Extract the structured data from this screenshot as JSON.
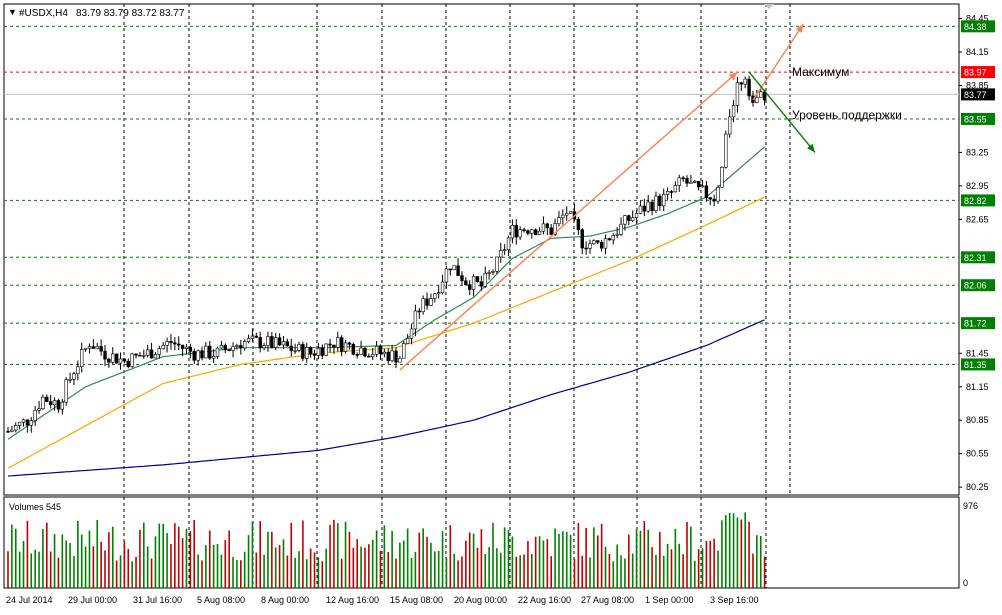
{
  "header": {
    "symbol_label": "#USDX,H4",
    "ohlc_label": "83.79 83.79 83.72 83.77",
    "arrow_glyph": "▼"
  },
  "colors": {
    "background": "#ffffff",
    "axis": "#000000",
    "grid": "#000000",
    "bull": "#008000",
    "bear": "#c00000",
    "wick": "#000000",
    "ma_fast": "#2e8b57",
    "ma_mid": "#ffa500",
    "ma_slow": "#00008b",
    "level_line": "#008000",
    "level_label_bg": "#008000",
    "resistance_line": "#ff0000",
    "resistance_label_bg": "#ff0000",
    "current_label_bg": "#000000",
    "trend_arrow": "#ff7f50",
    "support_arrow": "#008000",
    "volume_up": "#008000",
    "volume_down": "#c00000"
  },
  "price_axis_ticks": [
    "84.45",
    "84.15",
    "83.85",
    "83.25",
    "82.95",
    "82.65",
    "81.45",
    "81.15",
    "80.85",
    "80.55",
    "80.25"
  ],
  "price_levels": [
    {
      "value": 84.38,
      "label": "84.38",
      "kind": "level"
    },
    {
      "value": 83.97,
      "label": "83.97",
      "kind": "resistance"
    },
    {
      "value": 83.77,
      "label": "83.77",
      "kind": "current"
    },
    {
      "value": 83.55,
      "label": "83.55",
      "kind": "level"
    },
    {
      "value": 82.82,
      "label": "82.82",
      "kind": "level"
    },
    {
      "value": 82.31,
      "label": "82.31",
      "kind": "level"
    },
    {
      "value": 82.06,
      "label": "82.06",
      "kind": "level"
    },
    {
      "value": 81.72,
      "label": "81.72",
      "kind": "level"
    },
    {
      "value": 81.35,
      "label": "81.35",
      "kind": "level"
    }
  ],
  "annotations": {
    "maximum": "Максимум",
    "support": "Уровень поддержки"
  },
  "volume_panel": {
    "label": "Volumes 545",
    "max_label": "976",
    "min_label": "0"
  },
  "chart_data": {
    "type": "candlestick",
    "symbol": "#USDX",
    "timeframe": "H4",
    "x_tick_labels": [
      "24 Jul 2014",
      "29 Jul 00:00",
      "31 Jul 16:00",
      "5 Aug 08:00",
      "8 Aug 00:00",
      "12 Aug 16:00",
      "15 Aug 08:00",
      "20 Aug 00:00",
      "22 Aug 16:00",
      "27 Aug 08:00",
      "1 Sep 00:00",
      "3 Sep 16:00"
    ],
    "ylim": [
      80.18,
      84.58
    ],
    "volume_ylim": [
      0,
      976
    ],
    "grid": true,
    "anchors": [
      {
        "i": 0,
        "v": 80.75
      },
      {
        "i": 5,
        "v": 80.85
      },
      {
        "i": 9,
        "v": 81.05
      },
      {
        "i": 13,
        "v": 81.0
      },
      {
        "i": 17,
        "v": 81.3
      },
      {
        "i": 21,
        "v": 81.55
      },
      {
        "i": 25,
        "v": 81.45
      },
      {
        "i": 30,
        "v": 81.38
      },
      {
        "i": 36,
        "v": 81.45
      },
      {
        "i": 42,
        "v": 81.55
      },
      {
        "i": 48,
        "v": 81.45
      },
      {
        "i": 54,
        "v": 81.45
      },
      {
        "i": 60,
        "v": 81.55
      },
      {
        "i": 66,
        "v": 81.55
      },
      {
        "i": 72,
        "v": 81.5
      },
      {
        "i": 78,
        "v": 81.45
      },
      {
        "i": 84,
        "v": 81.55
      },
      {
        "i": 90,
        "v": 81.5
      },
      {
        "i": 96,
        "v": 81.45
      },
      {
        "i": 101,
        "v": 81.42
      },
      {
        "i": 106,
        "v": 81.85
      },
      {
        "i": 110,
        "v": 82.0
      },
      {
        "i": 114,
        "v": 82.25
      },
      {
        "i": 118,
        "v": 82.1
      },
      {
        "i": 122,
        "v": 82.05
      },
      {
        "i": 126,
        "v": 82.25
      },
      {
        "i": 130,
        "v": 82.55
      },
      {
        "i": 135,
        "v": 82.58
      },
      {
        "i": 140,
        "v": 82.55
      },
      {
        "i": 144,
        "v": 82.72
      },
      {
        "i": 148,
        "v": 82.45
      },
      {
        "i": 152,
        "v": 82.42
      },
      {
        "i": 156,
        "v": 82.52
      },
      {
        "i": 160,
        "v": 82.65
      },
      {
        "i": 165,
        "v": 82.78
      },
      {
        "i": 170,
        "v": 82.85
      },
      {
        "i": 174,
        "v": 83.0
      },
      {
        "i": 178,
        "v": 82.9
      },
      {
        "i": 182,
        "v": 82.85
      },
      {
        "i": 184,
        "v": 83.1
      },
      {
        "i": 186,
        "v": 83.6
      },
      {
        "i": 188,
        "v": 83.85
      },
      {
        "i": 190,
        "v": 83.95
      },
      {
        "i": 192,
        "v": 83.7
      },
      {
        "i": 195,
        "v": 83.77
      }
    ],
    "ma_fast_anchors": [
      {
        "i": 0,
        "v": 80.68
      },
      {
        "i": 20,
        "v": 81.15
      },
      {
        "i": 40,
        "v": 81.42
      },
      {
        "i": 60,
        "v": 81.5
      },
      {
        "i": 80,
        "v": 81.5
      },
      {
        "i": 100,
        "v": 81.52
      },
      {
        "i": 110,
        "v": 81.75
      },
      {
        "i": 120,
        "v": 81.95
      },
      {
        "i": 130,
        "v": 82.3
      },
      {
        "i": 140,
        "v": 82.48
      },
      {
        "i": 150,
        "v": 82.5
      },
      {
        "i": 160,
        "v": 82.58
      },
      {
        "i": 170,
        "v": 82.7
      },
      {
        "i": 180,
        "v": 82.85
      },
      {
        "i": 190,
        "v": 83.15
      },
      {
        "i": 195,
        "v": 83.3
      }
    ],
    "ma_mid_anchors": [
      {
        "i": 0,
        "v": 80.42
      },
      {
        "i": 20,
        "v": 80.8
      },
      {
        "i": 40,
        "v": 81.18
      },
      {
        "i": 60,
        "v": 81.35
      },
      {
        "i": 80,
        "v": 81.45
      },
      {
        "i": 100,
        "v": 81.5
      },
      {
        "i": 120,
        "v": 81.72
      },
      {
        "i": 140,
        "v": 82.0
      },
      {
        "i": 160,
        "v": 82.28
      },
      {
        "i": 180,
        "v": 82.6
      },
      {
        "i": 195,
        "v": 82.85
      }
    ],
    "ma_slow_anchors": [
      {
        "i": 0,
        "v": 80.35
      },
      {
        "i": 40,
        "v": 80.45
      },
      {
        "i": 80,
        "v": 80.58
      },
      {
        "i": 100,
        "v": 80.7
      },
      {
        "i": 120,
        "v": 80.85
      },
      {
        "i": 140,
        "v": 81.08
      },
      {
        "i": 160,
        "v": 81.28
      },
      {
        "i": 180,
        "v": 81.52
      },
      {
        "i": 195,
        "v": 81.75
      }
    ],
    "trend_arrow": {
      "from": {
        "i": 101,
        "v": 81.3
      },
      "to": {
        "i": 188,
        "v": 83.97
      }
    },
    "max_arrow": {
      "from": {
        "i": 192,
        "v": 83.72
      },
      "to": {
        "i": 205,
        "v": 84.4
      }
    },
    "support_arrow": {
      "from": {
        "i": 191,
        "v": 83.97
      },
      "to": {
        "i": 208,
        "v": 83.25
      }
    },
    "candle_count": 196
  }
}
